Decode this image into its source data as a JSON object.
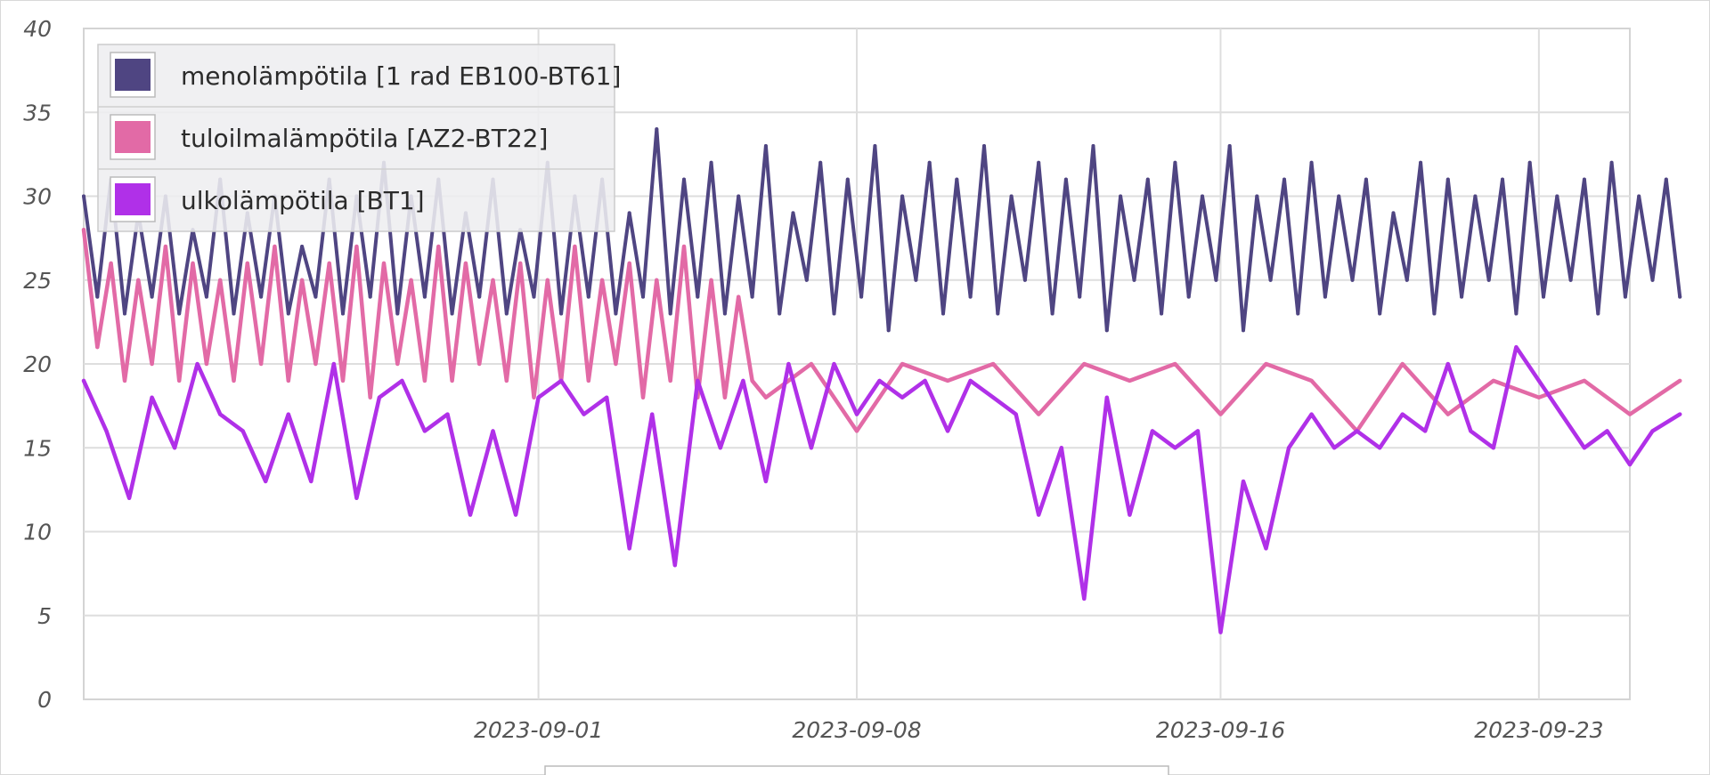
{
  "chart_data": {
    "type": "line",
    "title": "",
    "xlabel": "",
    "ylabel": "",
    "ylim": [
      0,
      40
    ],
    "yticks": [
      0,
      5,
      10,
      15,
      20,
      25,
      30,
      35,
      40
    ],
    "xlim": [
      "2023-08-22",
      "2023-09-25"
    ],
    "xticks": [
      "2023-09-01",
      "2023-09-08",
      "2023-09-16",
      "2023-09-23"
    ],
    "grid": true,
    "legend_position": "top-left",
    "series": [
      {
        "name": "menolämpötila [1 rad EB100-BT61]",
        "color": "#4f4582",
        "x": [
          0,
          0.3,
          0.6,
          0.9,
          1.2,
          1.5,
          1.8,
          2.1,
          2.4,
          2.7,
          3.0,
          3.3,
          3.6,
          3.9,
          4.2,
          4.5,
          4.8,
          5.1,
          5.4,
          5.7,
          6.0,
          6.3,
          6.6,
          6.9,
          7.2,
          7.5,
          7.8,
          8.1,
          8.4,
          8.7,
          9.0,
          9.3,
          9.6,
          9.9,
          10.2,
          10.5,
          10.8,
          11.1,
          11.4,
          11.7,
          12.0,
          12.3,
          12.6,
          12.9,
          13.2,
          13.5,
          13.8,
          14.1,
          14.4,
          14.7,
          15.0,
          15.3,
          15.6,
          15.9,
          16.2,
          16.5,
          16.8,
          17.1,
          17.4,
          17.7,
          18.0,
          18.3,
          18.6,
          18.9,
          19.2,
          19.5,
          19.8,
          20.1,
          20.4,
          20.7,
          21.0,
          21.3,
          21.6,
          21.9,
          22.2,
          22.5,
          22.8,
          23.1,
          23.4,
          23.7,
          24.0,
          24.3,
          24.6,
          24.9,
          25.2,
          25.5,
          25.8,
          26.1,
          26.4,
          26.7,
          27.0,
          27.3,
          27.6,
          27.9,
          28.2,
          28.5,
          28.8,
          29.1,
          29.4,
          29.7,
          30.0,
          30.3,
          30.6,
          30.9,
          31.2,
          31.5,
          31.8,
          32.1,
          32.4,
          32.7,
          33.0,
          33.3,
          33.6,
          33.9,
          34.2,
          34.5,
          34.8,
          35.1
        ],
        "values": [
          30,
          24,
          31,
          23,
          29,
          24,
          30,
          23,
          28,
          24,
          31,
          23,
          29,
          24,
          30,
          23,
          27,
          24,
          31,
          23,
          30,
          24,
          32,
          23,
          30,
          24,
          31,
          23,
          29,
          24,
          31,
          23,
          28,
          24,
          32,
          23,
          30,
          24,
          31,
          23,
          29,
          24,
          34,
          23,
          31,
          24,
          32,
          23,
          30,
          24,
          33,
          23,
          29,
          25,
          32,
          23,
          31,
          24,
          33,
          22,
          30,
          25,
          32,
          23,
          31,
          24,
          33,
          23,
          30,
          25,
          32,
          23,
          31,
          24,
          33,
          22,
          30,
          25,
          31,
          23,
          32,
          24,
          30,
          25,
          33,
          22,
          30,
          25,
          31,
          23,
          32,
          24,
          30,
          25,
          31,
          23,
          29,
          25,
          32,
          23,
          31,
          24,
          30,
          25,
          31,
          23,
          32,
          24,
          30,
          25,
          31,
          23,
          32,
          24,
          30,
          25,
          31,
          24
        ]
      },
      {
        "name": "tuloilmalämpötila [AZ2-BT22]",
        "color": "#e26aa6",
        "x": [
          0,
          0.3,
          0.6,
          0.9,
          1.2,
          1.5,
          1.8,
          2.1,
          2.4,
          2.7,
          3.0,
          3.3,
          3.6,
          3.9,
          4.2,
          4.5,
          4.8,
          5.1,
          5.4,
          5.7,
          6.0,
          6.3,
          6.6,
          6.9,
          7.2,
          7.5,
          7.8,
          8.1,
          8.4,
          8.7,
          9.0,
          9.3,
          9.6,
          9.9,
          10.2,
          10.5,
          10.8,
          11.1,
          11.4,
          11.7,
          12.0,
          12.3,
          12.6,
          12.9,
          13.2,
          13.5,
          13.8,
          14.1,
          14.4,
          14.7,
          15.0,
          16.0,
          17.0,
          18.0,
          19.0,
          20.0,
          21.0,
          22.0,
          23.0,
          24.0,
          25.0,
          26.0,
          27.0,
          28.0,
          29.0,
          30.0,
          31.0,
          32.0,
          33.0,
          34.0,
          35.1
        ],
        "values": [
          28,
          21,
          26,
          19,
          25,
          20,
          27,
          19,
          26,
          20,
          25,
          19,
          26,
          20,
          27,
          19,
          25,
          20,
          26,
          19,
          27,
          18,
          26,
          20,
          25,
          19,
          27,
          19,
          26,
          20,
          25,
          19,
          26,
          18,
          25,
          19,
          27,
          19,
          25,
          20,
          26,
          18,
          25,
          19,
          27,
          18,
          25,
          18,
          24,
          19,
          18,
          20,
          16,
          20,
          19,
          20,
          17,
          20,
          19,
          20,
          17,
          20,
          19,
          16,
          20,
          17,
          19,
          18,
          19,
          17,
          19
        ]
      },
      {
        "name": "ulkolämpötila [BT1]",
        "color": "#b030e8",
        "x": [
          0,
          0.5,
          1.0,
          1.5,
          2.0,
          2.5,
          3.0,
          3.5,
          4.0,
          4.5,
          5.0,
          5.5,
          6.0,
          6.5,
          7.0,
          7.5,
          8.0,
          8.5,
          9.0,
          9.5,
          10.0,
          10.5,
          11.0,
          11.5,
          12.0,
          12.5,
          13.0,
          13.5,
          14.0,
          14.5,
          15.0,
          15.5,
          16.0,
          16.5,
          17.0,
          17.5,
          18.0,
          18.5,
          19.0,
          19.5,
          20.0,
          20.5,
          21.0,
          21.5,
          22.0,
          22.5,
          23.0,
          23.5,
          24.0,
          24.5,
          25.0,
          25.5,
          26.0,
          26.5,
          27.0,
          27.5,
          28.0,
          28.5,
          29.0,
          29.5,
          30.0,
          30.5,
          31.0,
          31.5,
          32.0,
          32.5,
          33.0,
          33.5,
          34.0,
          34.5,
          35.1
        ],
        "values": [
          19,
          16,
          12,
          18,
          15,
          20,
          17,
          16,
          13,
          17,
          13,
          20,
          12,
          18,
          19,
          16,
          17,
          11,
          16,
          11,
          18,
          19,
          17,
          18,
          9,
          17,
          8,
          19,
          15,
          19,
          13,
          20,
          15,
          20,
          17,
          19,
          18,
          19,
          16,
          19,
          18,
          17,
          11,
          15,
          6,
          18,
          11,
          16,
          15,
          16,
          4,
          13,
          9,
          15,
          17,
          15,
          16,
          15,
          17,
          16,
          20,
          16,
          15,
          21,
          19,
          17,
          15,
          16,
          14,
          16,
          17
        ]
      }
    ]
  }
}
